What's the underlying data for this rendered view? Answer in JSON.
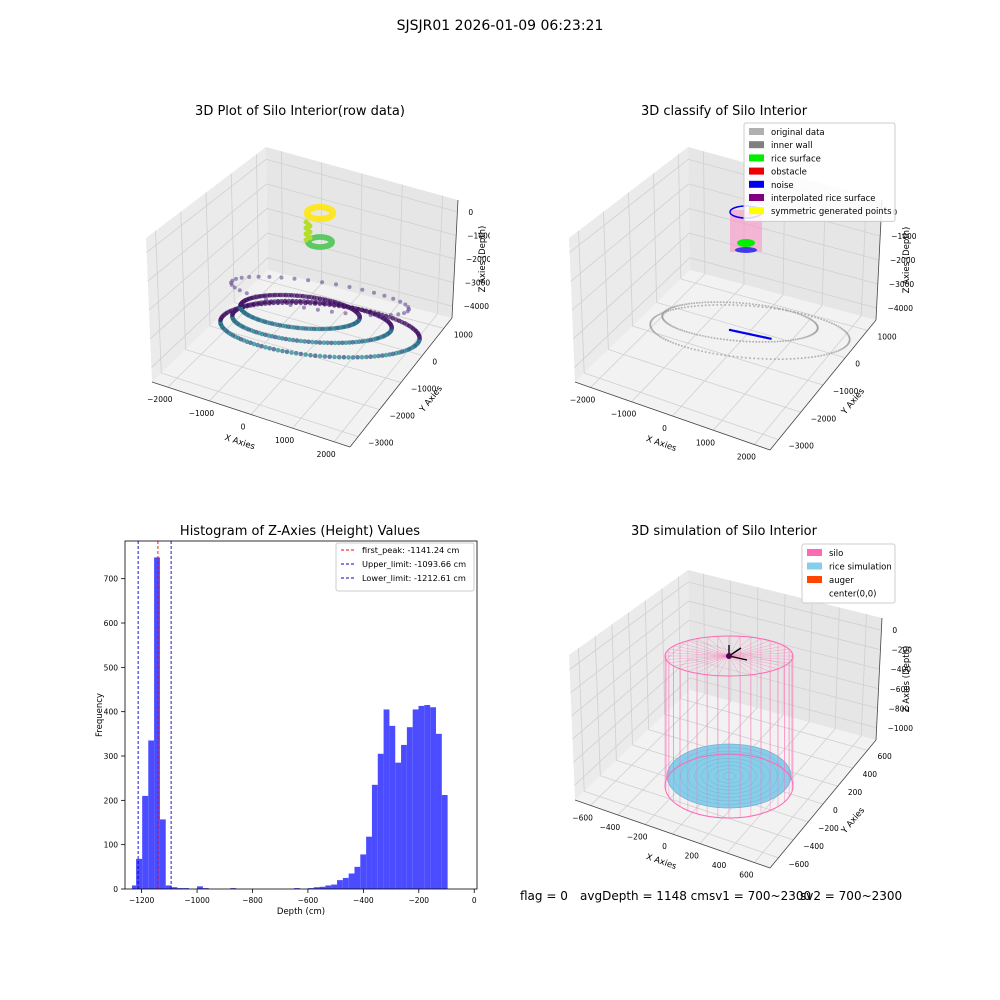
{
  "figure": {
    "suptitle": "SJSJR01 2026-01-09 06:23:21",
    "footer": {
      "flag": "flag = 0",
      "avg": "avgDepth = 1148 cmsv1 = 700~2300",
      "sv2": "sv2 = 700~2300"
    }
  },
  "chart_data": [
    {
      "type": "scatter",
      "title": "3D Plot of Silo Interior(row data)",
      "xlabel": "X Axies",
      "ylabel": "Y Axies",
      "zlabel": "Z Axies (Depth)",
      "x_ticks": [
        "−2000",
        "−1000",
        "0",
        "1000",
        "2000"
      ],
      "y_ticks": [
        "1000",
        "0",
        "−1000",
        "−2000",
        "−3000"
      ],
      "z_ticks": [
        "0",
        "−1000",
        "−2000",
        "−3000",
        "−4000"
      ],
      "colormap": "viridis",
      "grid": true
    },
    {
      "type": "scatter",
      "title": "3D classify of Silo Interior",
      "xlabel": "X Axies",
      "ylabel": "Y Axies",
      "zlabel": "Z Axies (Depth)",
      "x_ticks": [
        "−2000",
        "−1000",
        "0",
        "1000",
        "2000"
      ],
      "y_ticks": [
        "1000",
        "0",
        "−1000",
        "−2000",
        "−3000"
      ],
      "z_ticks": [
        "0",
        "−1000",
        "−2000",
        "−3000",
        "−4000"
      ],
      "legend_position": "top-right",
      "legend": [
        {
          "label": "original data",
          "color": "#b0b0b0"
        },
        {
          "label": "inner wall",
          "color": "#808080"
        },
        {
          "label": "rice surface",
          "color": "#00ee00"
        },
        {
          "label": "obstacle",
          "color": "#ee0000"
        },
        {
          "label": "noise",
          "color": "#0000ee"
        },
        {
          "label": "interpolated rice surface",
          "color": "#800080"
        },
        {
          "label": "symmetric generated points",
          "color": "#ffff00"
        }
      ],
      "grid": true
    },
    {
      "type": "bar",
      "title": "Histogram of Z-Axies (Height) Values",
      "xlabel": "Depth (cm)",
      "ylabel": "Frequency",
      "xlim": [
        -1260,
        10
      ],
      "ylim": [
        0,
        785
      ],
      "x_ticks": [
        -1200,
        -1000,
        -800,
        -600,
        -400,
        -200,
        0
      ],
      "x_tick_labels": [
        "−1200",
        "−1000",
        "−800",
        "−600",
        "−400",
        "−200",
        "0"
      ],
      "y_ticks": [
        0,
        100,
        200,
        300,
        400,
        500,
        600,
        700
      ],
      "bar_color": "#4b4bff",
      "bins": [
        {
          "x0": -1235,
          "x1": -1220,
          "count": 8
        },
        {
          "x0": -1220,
          "x1": -1198,
          "count": 68
        },
        {
          "x0": -1198,
          "x1": -1176,
          "count": 210
        },
        {
          "x0": -1176,
          "x1": -1155,
          "count": 335
        },
        {
          "x0": -1155,
          "x1": -1134,
          "count": 748
        },
        {
          "x0": -1134,
          "x1": -1113,
          "count": 157
        },
        {
          "x0": -1113,
          "x1": -1092,
          "count": 8
        },
        {
          "x0": -1092,
          "x1": -1071,
          "count": 4
        },
        {
          "x0": -1071,
          "x1": -1050,
          "count": 2
        },
        {
          "x0": -1050,
          "x1": -1029,
          "count": 2
        },
        {
          "x0": -1000,
          "x1": -979,
          "count": 6
        },
        {
          "x0": -979,
          "x1": -958,
          "count": 2
        },
        {
          "x0": -880,
          "x1": -859,
          "count": 2
        },
        {
          "x0": -650,
          "x1": -629,
          "count": 2
        },
        {
          "x0": -600,
          "x1": -579,
          "count": 2
        },
        {
          "x0": -579,
          "x1": -558,
          "count": 4
        },
        {
          "x0": -558,
          "x1": -537,
          "count": 5
        },
        {
          "x0": -537,
          "x1": -516,
          "count": 8
        },
        {
          "x0": -516,
          "x1": -495,
          "count": 10
        },
        {
          "x0": -495,
          "x1": -474,
          "count": 20
        },
        {
          "x0": -474,
          "x1": -453,
          "count": 25
        },
        {
          "x0": -453,
          "x1": -432,
          "count": 35
        },
        {
          "x0": -432,
          "x1": -411,
          "count": 50
        },
        {
          "x0": -411,
          "x1": -390,
          "count": 78
        },
        {
          "x0": -390,
          "x1": -369,
          "count": 118
        },
        {
          "x0": -369,
          "x1": -348,
          "count": 235
        },
        {
          "x0": -348,
          "x1": -327,
          "count": 305
        },
        {
          "x0": -327,
          "x1": -306,
          "count": 405
        },
        {
          "x0": -306,
          "x1": -285,
          "count": 368
        },
        {
          "x0": -285,
          "x1": -264,
          "count": 285
        },
        {
          "x0": -264,
          "x1": -243,
          "count": 325
        },
        {
          "x0": -243,
          "x1": -222,
          "count": 365
        },
        {
          "x0": -222,
          "x1": -201,
          "count": 405
        },
        {
          "x0": -201,
          "x1": -180,
          "count": 413
        },
        {
          "x0": -180,
          "x1": -159,
          "count": 415
        },
        {
          "x0": -159,
          "x1": -138,
          "count": 410
        },
        {
          "x0": -138,
          "x1": -117,
          "count": 350
        },
        {
          "x0": -117,
          "x1": -96,
          "count": 212
        }
      ],
      "vlines": [
        {
          "x": -1141.24,
          "color": "#ff0000",
          "label": "first_peak: -1141.24 cm"
        },
        {
          "x": -1093.66,
          "color": "#0000cc",
          "label": "Upper_limit: -1093.66 cm"
        },
        {
          "x": -1212.61,
          "color": "#0000cc",
          "label": "Lower_limit: -1212.61 cm"
        }
      ],
      "legend_position": "top-right"
    },
    {
      "type": "scatter",
      "title": "3D simulation of Silo Interior",
      "xlabel": "X Axies",
      "ylabel": "Y Axies",
      "zlabel": "Z Axies (Depth)",
      "x_ticks": [
        "−600",
        "−400",
        "−200",
        "0",
        "200",
        "400",
        "600"
      ],
      "y_ticks": [
        "600",
        "400",
        "200",
        "0",
        "−200",
        "−400",
        "−600"
      ],
      "z_ticks": [
        "0",
        "−200",
        "−400",
        "−600",
        "−800",
        "−1000"
      ],
      "legend_position": "top-right",
      "legend": [
        {
          "label": "silo",
          "color": "#ff69b4"
        },
        {
          "label": "rice simulation",
          "color": "#87ceeb"
        },
        {
          "label": "auger",
          "color": "#ff4500"
        },
        {
          "label": "center(0,0)",
          "color": "#ffffff"
        }
      ],
      "grid": true
    }
  ]
}
